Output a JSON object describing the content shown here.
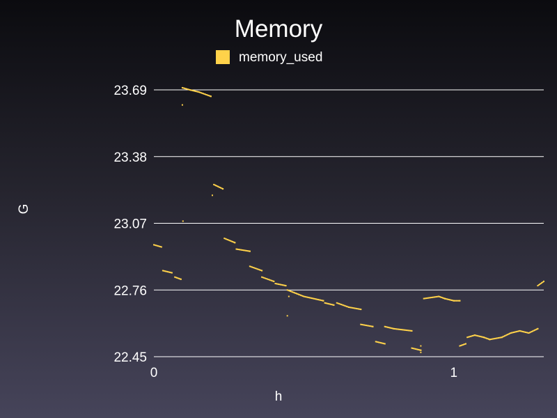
{
  "chart_data": {
    "type": "scatter",
    "title": "Memory",
    "xlabel": "h",
    "ylabel": "G",
    "legend": {
      "placement": "top-center",
      "entries": [
        "memory_used"
      ]
    },
    "xlim": [
      0,
      1.3
    ],
    "ylim": [
      22.45,
      23.69
    ],
    "x_ticks": [
      "0",
      "1"
    ],
    "x_tick_values": [
      0,
      1
    ],
    "y_ticks": [
      "23.69",
      "23.38",
      "23.07",
      "22.76",
      "22.45"
    ],
    "y_tick_values": [
      23.69,
      23.38,
      23.07,
      22.76,
      22.45
    ],
    "grid": true,
    "series": [
      {
        "name": "memory_used",
        "color": "#ffd24a",
        "segments": [
          [
            [
              0.0,
              22.97
            ],
            [
              0.025,
              22.96
            ]
          ],
          [
            [
              0.03,
              22.85
            ],
            [
              0.06,
              22.84
            ]
          ],
          [
            [
              0.07,
              22.82
            ],
            [
              0.09,
              22.81
            ]
          ],
          [
            [
              0.095,
              23.62
            ]
          ],
          [
            [
              0.097,
              23.08
            ]
          ],
          [
            [
              0.095,
              23.7
            ],
            [
              0.12,
              23.69
            ],
            [
              0.15,
              23.68
            ],
            [
              0.19,
              23.66
            ]
          ],
          [
            [
              0.195,
              23.2
            ]
          ],
          [
            [
              0.2,
              23.25
            ],
            [
              0.23,
              23.23
            ]
          ],
          [
            [
              0.235,
              23.0
            ],
            [
              0.27,
              22.98
            ]
          ],
          [
            [
              0.275,
              22.95
            ],
            [
              0.32,
              22.94
            ]
          ],
          [
            [
              0.32,
              22.87
            ],
            [
              0.36,
              22.85
            ]
          ],
          [
            [
              0.36,
              22.82
            ],
            [
              0.4,
              22.8
            ]
          ],
          [
            [
              0.405,
              22.79
            ],
            [
              0.44,
              22.78
            ]
          ],
          [
            [
              0.445,
              22.76
            ],
            [
              0.5,
              22.73
            ],
            [
              0.565,
              22.71
            ]
          ],
          [
            [
              0.45,
              22.73
            ]
          ],
          [
            [
              0.445,
              22.64
            ]
          ],
          [
            [
              0.57,
              22.7
            ],
            [
              0.6,
              22.69
            ]
          ],
          [
            [
              0.61,
              22.7
            ],
            [
              0.65,
              22.68
            ],
            [
              0.69,
              22.67
            ]
          ],
          [
            [
              0.69,
              22.6
            ],
            [
              0.73,
              22.59
            ]
          ],
          [
            [
              0.74,
              22.52
            ],
            [
              0.77,
              22.51
            ]
          ],
          [
            [
              0.77,
              22.59
            ],
            [
              0.8,
              22.58
            ],
            [
              0.86,
              22.57
            ]
          ],
          [
            [
              0.86,
              22.49
            ],
            [
              0.89,
              22.48
            ]
          ],
          [
            [
              0.89,
              22.47
            ]
          ],
          [
            [
              0.89,
              22.5
            ]
          ],
          [
            [
              0.9,
              22.72
            ],
            [
              0.95,
              22.73
            ],
            [
              0.97,
              22.72
            ]
          ],
          [
            [
              0.97,
              22.72
            ],
            [
              1.0,
              22.71
            ],
            [
              1.02,
              22.71
            ]
          ],
          [
            [
              1.02,
              22.5
            ],
            [
              1.04,
              22.51
            ]
          ],
          [
            [
              1.045,
              22.54
            ],
            [
              1.07,
              22.55
            ],
            [
              1.1,
              22.54
            ],
            [
              1.12,
              22.53
            ]
          ],
          [
            [
              1.12,
              22.53
            ],
            [
              1.16,
              22.54
            ],
            [
              1.19,
              22.56
            ],
            [
              1.22,
              22.57
            ],
            [
              1.25,
              22.56
            ],
            [
              1.28,
              22.58
            ]
          ],
          [
            [
              1.28,
              22.78
            ],
            [
              1.3,
              22.8
            ]
          ]
        ]
      }
    ]
  }
}
